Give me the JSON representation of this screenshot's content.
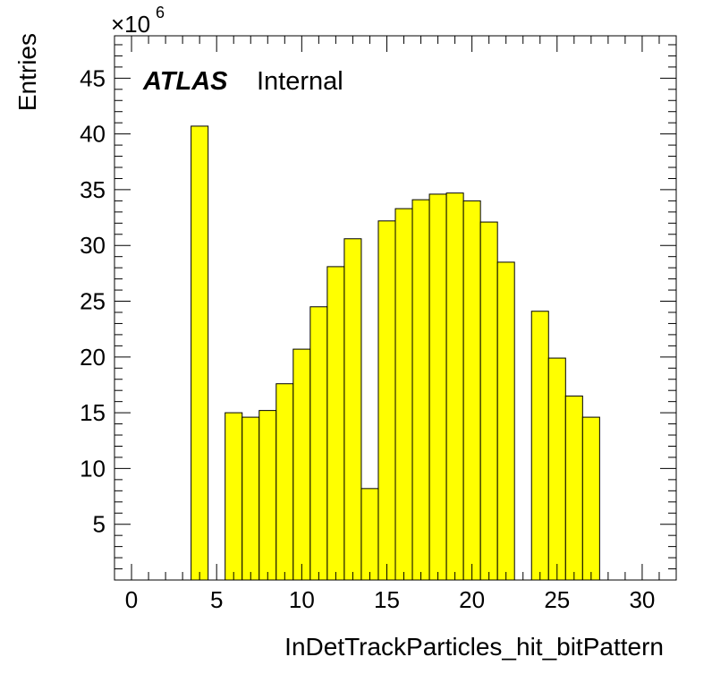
{
  "chart_data": {
    "type": "bar",
    "label_top_left": {
      "brand": "ATLAS",
      "status": "Internal"
    },
    "ylabel": "Entries",
    "xlabel": "InDetTrackParticles_hit_bitPattern",
    "y_multiplier": "×10",
    "y_multiplier_exp": "6",
    "xlim": [
      -1,
      32
    ],
    "ylim": [
      0,
      48.8
    ],
    "x_ticks": [
      0,
      5,
      10,
      15,
      20,
      25,
      30
    ],
    "y_ticks": [
      5,
      10,
      15,
      20,
      25,
      30,
      35,
      40,
      45
    ],
    "bin_edges_start": -1,
    "bin_width": 1,
    "bins": [
      {
        "x": 4,
        "value": 40.7
      },
      {
        "x": 5,
        "value": 0
      },
      {
        "x": 6,
        "value": 15.0
      },
      {
        "x": 7,
        "value": 14.6
      },
      {
        "x": 8,
        "value": 15.2
      },
      {
        "x": 9,
        "value": 17.6
      },
      {
        "x": 10,
        "value": 20.7
      },
      {
        "x": 11,
        "value": 24.5
      },
      {
        "x": 12,
        "value": 28.1
      },
      {
        "x": 13,
        "value": 30.6
      },
      {
        "x": 14,
        "value": 8.2
      },
      {
        "x": 15,
        "value": 32.2
      },
      {
        "x": 16,
        "value": 33.3
      },
      {
        "x": 17,
        "value": 34.1
      },
      {
        "x": 18,
        "value": 34.6
      },
      {
        "x": 19,
        "value": 34.7
      },
      {
        "x": 20,
        "value": 34.0
      },
      {
        "x": 21,
        "value": 32.1
      },
      {
        "x": 22,
        "value": 28.5
      },
      {
        "x": 23,
        "value": 0
      },
      {
        "x": 24,
        "value": 24.1
      },
      {
        "x": 25,
        "value": 19.9
      },
      {
        "x": 26,
        "value": 16.5
      },
      {
        "x": 27,
        "value": 14.6
      }
    ],
    "fill_color": "#ffff00",
    "line_color": "#000000",
    "legend": "none",
    "grid": false
  }
}
